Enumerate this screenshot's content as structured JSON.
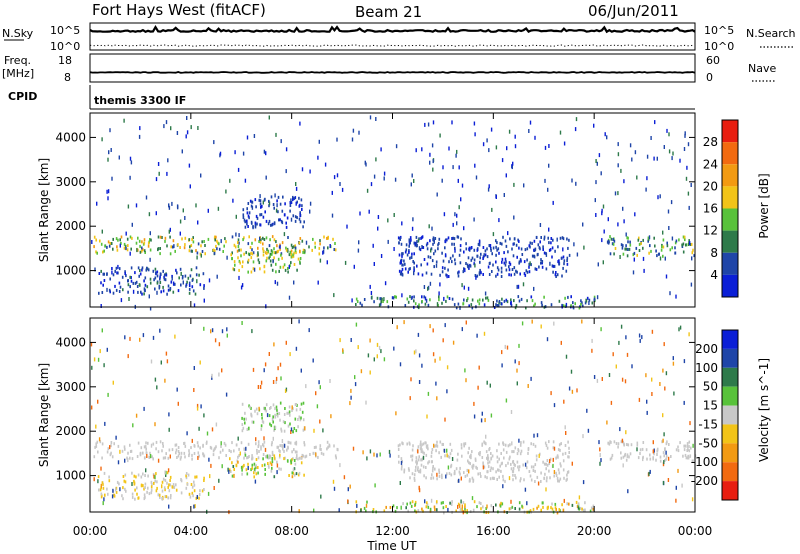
{
  "header": {
    "station": "Fort Hays West (fitACF)",
    "beam": "Beam 21",
    "date": "06/Jun/2011"
  },
  "top_panels": {
    "nsky_label": "N.Sky",
    "nsearch_label": "N.Search",
    "nsky_ticks": [
      "10^5",
      "10^0"
    ],
    "nsearch_ticks": [
      "10^5",
      "10^0"
    ],
    "freq_label": "Freq.",
    "freq_unit": "[MHz]",
    "freq_ticks": [
      "18",
      "8"
    ],
    "nave_label": "Nave",
    "nave_ticks": [
      "60",
      "0"
    ],
    "cpid_label": "CPID",
    "cpid_text": "themis 3300 IF"
  },
  "colors": {
    "power": [
      "#0b1fd6",
      "#1f45a8",
      "#2e7a4a",
      "#58c23a",
      "#f2c418",
      "#f29a12",
      "#f26a10",
      "#e81e10"
    ],
    "velocity": [
      "#0b1fd6",
      "#1f45a8",
      "#2e7a4a",
      "#58c23a",
      "#c8c8c8",
      "#f2c418",
      "#f29a12",
      "#f26a10",
      "#e81e10"
    ]
  },
  "chart_data": [
    {
      "type": "heatmap",
      "name": "power",
      "ylabel": "Slant Range [km]",
      "xlim": [
        "00:00",
        "24:00"
      ],
      "ylim": [
        180,
        4550
      ],
      "yticks": [
        "1000",
        "2000",
        "3000",
        "4000"
      ],
      "colorbar_label": "Power [dB]",
      "colorbar_ticks": [
        "4",
        "8",
        "12",
        "16",
        "20",
        "24",
        "28"
      ],
      "colorbar_range": [
        0,
        32
      ],
      "bands": [
        {
          "t0": 0.1,
          "t1": 9.8,
          "r0": 1400,
          "r1": 1800,
          "v0": 6,
          "v1": 22
        },
        {
          "t0": 5.5,
          "t1": 8.5,
          "r0": 1000,
          "r1": 1500,
          "v0": 8,
          "v1": 20
        },
        {
          "t0": 6.0,
          "t1": 8.5,
          "r0": 2000,
          "r1": 2700,
          "v0": 2,
          "v1": 8
        },
        {
          "t0": 0.3,
          "t1": 4.5,
          "r0": 500,
          "r1": 1100,
          "v0": 2,
          "v1": 10
        },
        {
          "t0": 12.2,
          "t1": 19.0,
          "r0": 900,
          "r1": 1800,
          "v0": 2,
          "v1": 8
        },
        {
          "t0": 10.5,
          "t1": 20.0,
          "r0": 190,
          "r1": 450,
          "v0": 2,
          "v1": 16
        },
        {
          "t0": 20.5,
          "t1": 24.0,
          "r0": 1350,
          "r1": 1800,
          "v0": 4,
          "v1": 18
        }
      ]
    },
    {
      "type": "heatmap",
      "name": "velocity",
      "ylabel": "Slant Range [km]",
      "xlabel": "Time UT",
      "xticks": [
        "00:00",
        "04:00",
        "08:00",
        "12:00",
        "16:00",
        "20:00",
        "00:00"
      ],
      "xlim": [
        "00:00",
        "24:00"
      ],
      "ylim": [
        180,
        4550
      ],
      "yticks": [
        "1000",
        "2000",
        "3000",
        "4000"
      ],
      "colorbar_label": "Velocity [m s^-1]",
      "colorbar_ticks": [
        "200",
        "100",
        "50",
        "15",
        "-15",
        "-50",
        "-100",
        "-200"
      ],
      "bands": [
        {
          "t0": 0.1,
          "t1": 9.8,
          "r0": 1400,
          "r1": 1800,
          "v0": -15,
          "v1": 15
        },
        {
          "t0": 5.5,
          "t1": 8.5,
          "r0": 1000,
          "r1": 1500,
          "v0": -60,
          "v1": 60
        },
        {
          "t0": 6.0,
          "t1": 8.5,
          "r0": 2000,
          "r1": 2700,
          "v0": -15,
          "v1": 40
        },
        {
          "t0": 0.3,
          "t1": 4.5,
          "r0": 500,
          "r1": 1100,
          "v0": -40,
          "v1": 15
        },
        {
          "t0": 12.2,
          "t1": 19.0,
          "r0": 900,
          "r1": 1800,
          "v0": -15,
          "v1": 15
        },
        {
          "t0": 10.5,
          "t1": 20.0,
          "r0": 190,
          "r1": 450,
          "v0": -60,
          "v1": 60
        },
        {
          "t0": 20.5,
          "t1": 24.0,
          "r0": 1350,
          "r1": 1800,
          "v0": -15,
          "v1": 15
        }
      ]
    }
  ]
}
